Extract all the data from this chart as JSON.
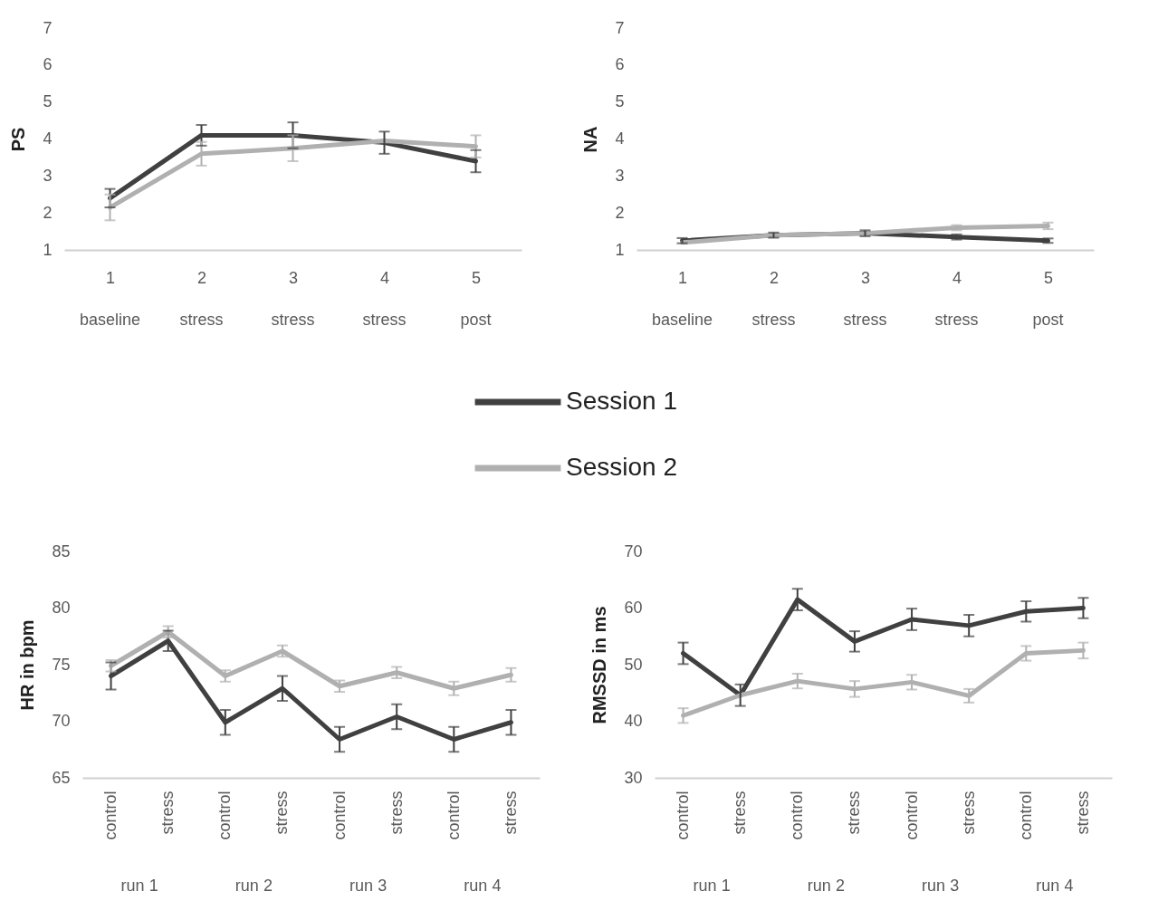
{
  "chart_data": [
    {
      "type": "line",
      "ylabel": "PS",
      "categories": [
        "1",
        "2",
        "3",
        "4",
        "5"
      ],
      "annotations": [
        "baseline",
        "stress",
        "stress",
        "stress",
        "post"
      ],
      "ylim": [
        1,
        7
      ],
      "yticks": [
        1,
        2,
        3,
        4,
        5,
        6,
        7
      ],
      "legend": "bottom",
      "series": [
        {
          "name": "Session 1",
          "color": "#404040",
          "values": [
            2.4,
            4.1,
            4.1,
            3.9,
            3.4
          ],
          "errors": [
            0.25,
            0.28,
            0.35,
            0.3,
            0.3
          ]
        },
        {
          "name": "Session 2",
          "color": "#b0b0b0",
          "values": [
            2.15,
            3.6,
            3.75,
            3.95,
            3.8
          ],
          "errors": [
            0.35,
            0.32,
            0.35,
            null,
            0.3
          ]
        }
      ]
    },
    {
      "type": "line",
      "ylabel": "NA",
      "categories": [
        "1",
        "2",
        "3",
        "4",
        "5"
      ],
      "annotations": [
        "baseline",
        "stress",
        "stress",
        "stress",
        "post"
      ],
      "ylim": [
        1,
        7
      ],
      "yticks": [
        1,
        2,
        3,
        4,
        5,
        6,
        7
      ],
      "series": [
        {
          "color": "#404040",
          "values": [
            1.25,
            1.4,
            1.45,
            1.35,
            1.25
          ],
          "errors": [
            0.07,
            0.07,
            0.08,
            0.07,
            0.06
          ]
        },
        {
          "color": "#b0b0b0",
          "values": [
            1.2,
            1.4,
            1.45,
            1.6,
            1.65
          ],
          "errors": [
            null,
            null,
            null,
            0.07,
            0.09
          ]
        }
      ]
    },
    {
      "type": "line",
      "ylabel": "HR in bpm",
      "categories": [
        "control",
        "stress",
        "control",
        "stress",
        "control",
        "stress",
        "control",
        "stress"
      ],
      "annotations": [
        "run 1",
        "run 2",
        "run 3",
        "run 4"
      ],
      "ylim": [
        65,
        85
      ],
      "yticks": [
        65,
        70,
        75,
        80,
        85
      ],
      "series": [
        {
          "color": "#404040",
          "values": [
            74.0,
            77.1,
            69.9,
            72.9,
            68.4,
            70.4,
            68.4,
            69.9
          ],
          "errors": [
            1.2,
            0.9,
            1.1,
            1.1,
            1.1,
            1.1,
            1.1,
            1.1
          ]
        },
        {
          "color": "#b0b0b0",
          "values": [
            74.9,
            77.9,
            74.0,
            76.2,
            73.1,
            74.3,
            72.9,
            74.1
          ],
          "errors": [
            0.5,
            0.5,
            0.5,
            0.5,
            0.5,
            0.5,
            0.6,
            0.6
          ]
        }
      ]
    },
    {
      "type": "line",
      "ylabel": "RMSSD in ms",
      "categories": [
        "control",
        "stress",
        "control",
        "stress",
        "control",
        "stress",
        "control",
        "stress"
      ],
      "annotations": [
        "run 1",
        "run 2",
        "run 3",
        "run 4"
      ],
      "ylim": [
        30,
        70
      ],
      "yticks": [
        30,
        40,
        50,
        60,
        70
      ],
      "series": [
        {
          "color": "#404040",
          "values": [
            52.0,
            44.6,
            61.5,
            54.1,
            58.0,
            56.9,
            59.4,
            60.0
          ],
          "errors": [
            1.9,
            1.9,
            1.9,
            1.8,
            1.9,
            1.9,
            1.8,
            1.8
          ]
        },
        {
          "color": "#b0b0b0",
          "values": [
            41.0,
            44.6,
            47.1,
            45.7,
            46.9,
            44.5,
            52.0,
            52.5
          ],
          "errors": [
            1.3,
            null,
            1.3,
            1.4,
            1.3,
            1.2,
            1.3,
            1.4
          ]
        }
      ]
    }
  ]
}
